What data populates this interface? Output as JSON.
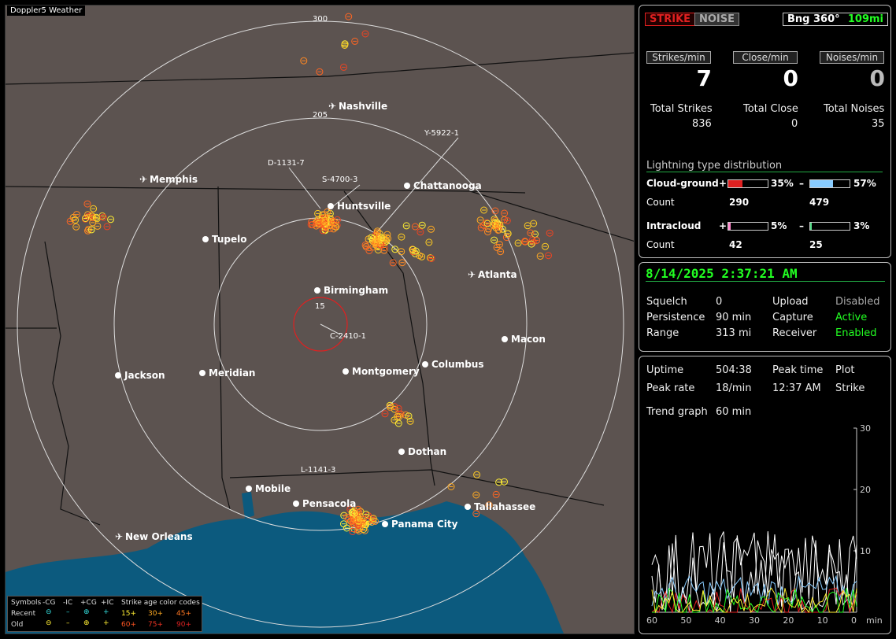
{
  "brand": "Doppler5 Weather",
  "cities": [
    {
      "name": "Nashville",
      "icon": "airport"
    },
    {
      "name": "Memphis",
      "icon": "airport"
    },
    {
      "name": "Chattanooga",
      "icon": "dot"
    },
    {
      "name": "Huntsville",
      "icon": "dot"
    },
    {
      "name": "Tupelo",
      "icon": "dot"
    },
    {
      "name": "Atlanta",
      "icon": "airport"
    },
    {
      "name": "Birmingham",
      "icon": "dot"
    },
    {
      "name": "Macon",
      "icon": "dot"
    },
    {
      "name": "Jackson",
      "icon": "dot"
    },
    {
      "name": "Meridian",
      "icon": "dot"
    },
    {
      "name": "Montgomery",
      "icon": "dot"
    },
    {
      "name": "Columbus",
      "icon": "dot"
    },
    {
      "name": "Dothan",
      "icon": "dot"
    },
    {
      "name": "Mobile",
      "icon": "dot"
    },
    {
      "name": "Pensacola",
      "icon": "dot"
    },
    {
      "name": "Panama City",
      "icon": "dot"
    },
    {
      "name": "Tallahassee",
      "icon": "dot"
    },
    {
      "name": "New Orleans",
      "icon": "airport"
    }
  ],
  "ranges": [
    "300",
    "205",
    "15"
  ],
  "storms": [
    "Y-5922-1",
    "D-1131-7",
    "S-4700-3",
    "C-2410-1",
    "L-1141-3"
  ],
  "legend": {
    "symbols_label": "Symbols",
    "neg_cg": "-CG",
    "neg_ic": "-IC",
    "pos_cg": "+CG",
    "pos_ic": "+IC",
    "age_title": "Strike age color codes",
    "recent": "Recent",
    "old": "Old",
    "recent_ages": [
      "15+",
      "30+",
      "45+"
    ],
    "old_ages": [
      "60+",
      "75+",
      "90+"
    ]
  },
  "top": {
    "strike_btn": "STRIKE",
    "noise_btn": "NOISE",
    "bearing": "Bng 360°",
    "bearing_dist": "109mi",
    "hdr_strikes": "Strikes/min",
    "hdr_close": "Close/min",
    "hdr_noises": "Noises/min",
    "val_strikes": "7",
    "val_close": "0",
    "val_noises": "0",
    "lbl_total_strikes": "Total Strikes",
    "lbl_total_close": "Total Close",
    "lbl_total_noises": "Total Noises",
    "total_strikes": "836",
    "total_close": "0",
    "total_noises": "35",
    "dist_title": "Lightning type distribution",
    "cg_label": "Cloud-ground",
    "cg_pos_pct": "35%",
    "cg_neg_pct": "57%",
    "cg_pos_pct_val": 35,
    "cg_neg_pct_val": 57,
    "count_label": "Count",
    "cg_pos_count": "290",
    "cg_neg_count": "479",
    "ic_label": "Intracloud",
    "ic_pos_pct": "5%",
    "ic_neg_pct": "3%",
    "ic_pos_pct_val": 5,
    "ic_neg_pct_val": 3,
    "ic_pos_count": "42",
    "ic_neg_count": "25",
    "plus": "+",
    "minus": "–"
  },
  "status": {
    "datetime": "8/14/2025 2:37:21 AM",
    "squelch_l": "Squelch",
    "squelch": "0",
    "upload_l": "Upload",
    "upload": "Disabled",
    "persist_l": "Persistence",
    "persist": "90 min",
    "capture_l": "Capture",
    "capture": "Active",
    "range_l": "Range",
    "range": "313 mi",
    "receiver_l": "Receiver",
    "receiver": "Enabled"
  },
  "trend": {
    "uptime_l": "Uptime",
    "uptime": "504:38",
    "peaktime_l": "Peak time",
    "plot_l": "Plot",
    "peakrate_l": "Peak rate",
    "peakrate": "18/min",
    "peaktime": "12:37 AM",
    "plot": "Strike",
    "trend_l": "Trend graph",
    "trend": "60 min",
    "y_ticks": [
      "30",
      "20",
      "10"
    ],
    "x_ticks": [
      "60",
      "50",
      "40",
      "30",
      "20",
      "10",
      "0"
    ],
    "x_unit": "min"
  },
  "colors": {
    "active": "#22ff22",
    "strike_red": "#e02020",
    "neg_blue": "#88ccff",
    "ic_pink": "#ff88cc",
    "ic_green": "#55dd88"
  }
}
